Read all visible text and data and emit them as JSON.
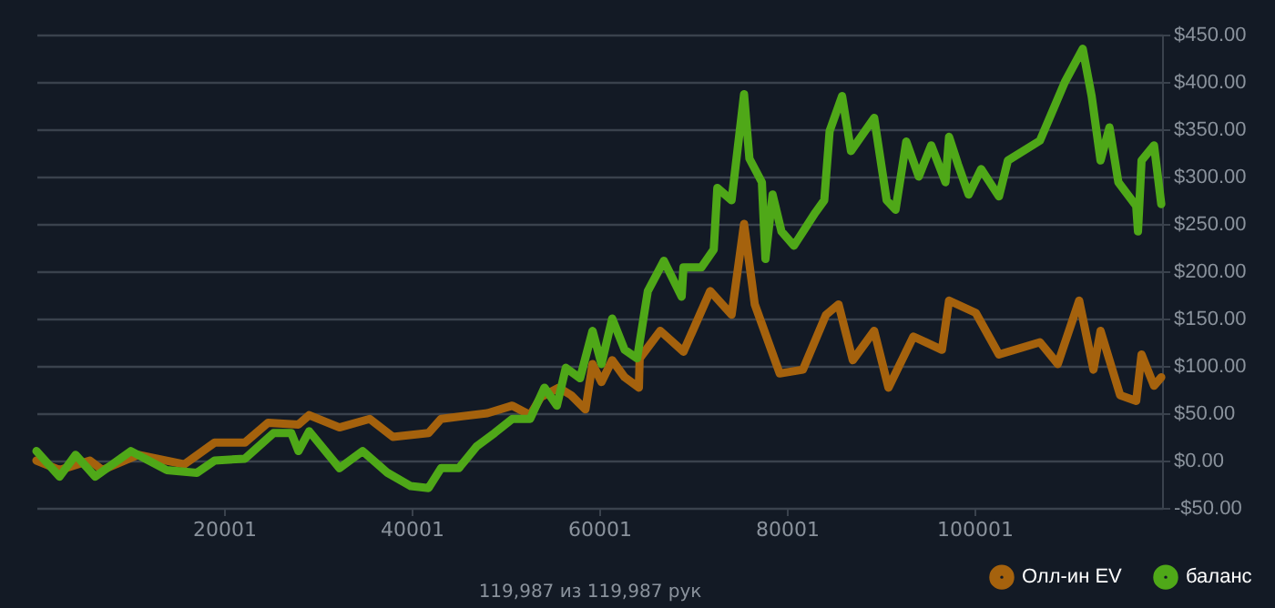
{
  "chart_data": {
    "type": "line",
    "xlim": [
      1,
      119987
    ],
    "xticks": [
      20001,
      40001,
      60001,
      80001,
      100001
    ],
    "ylim": [
      -50,
      450
    ],
    "yticks": [
      {
        "value": -50,
        "label": "-$50.00"
      },
      {
        "value": 0,
        "label": "$0.00"
      },
      {
        "value": 50,
        "label": "$50.00"
      },
      {
        "value": 100,
        "label": "$100.00"
      },
      {
        "value": 150,
        "label": "$150.00"
      },
      {
        "value": 200,
        "label": "$200.00"
      },
      {
        "value": 250,
        "label": "$250.00"
      },
      {
        "value": 300,
        "label": "$300.00"
      },
      {
        "value": 350,
        "label": "$350.00"
      },
      {
        "value": 400,
        "label": "$400.00"
      },
      {
        "value": 450,
        "label": "$450.00"
      }
    ],
    "grid": "y",
    "legend": "bottom right",
    "marker": "none",
    "line_style": "solid",
    "annotations": [
      "119,987 из 119,987 рук"
    ],
    "series": [
      {
        "name": "Олл-ин EV",
        "color": "#a5620d",
        "x": [
          1,
          2470,
          5700,
          7030,
          10830,
          15770,
          19000,
          22230,
          24700,
          27930,
          29070,
          32300,
          35530,
          38000,
          41800,
          43130,
          48070,
          50730,
          52630,
          53770,
          55670,
          57000,
          58520,
          59280,
          60230,
          61370,
          62700,
          64220,
          64300,
          66500,
          68970,
          71820,
          74100,
          75430,
          76570,
          79230,
          81700,
          84170,
          85500,
          87020,
          89300,
          90820,
          93480,
          96520,
          97280,
          100130,
          102600,
          106970,
          108870,
          111150,
          112670,
          113430,
          115520,
          117230,
          117800,
          119130,
          119900
        ],
        "values": [
          0,
          -10,
          0,
          -10,
          6,
          -4,
          19,
          19,
          40,
          38,
          48,
          35,
          44,
          25,
          29,
          44,
          50,
          58,
          48,
          67,
          77,
          69,
          54,
          102,
          83,
          106,
          88,
          77,
          108,
          137,
          115,
          179,
          154,
          250,
          165,
          92,
          96,
          154,
          165,
          106,
          137,
          77,
          131,
          117,
          169,
          156,
          112,
          125,
          102,
          169,
          96,
          137,
          69,
          63,
          112,
          79,
          88
        ]
      },
      {
        "name": "баланс",
        "color": "#4fa818",
        "x": [
          1,
          2470,
          4180,
          6270,
          10070,
          13870,
          17100,
          19000,
          22230,
          25270,
          27170,
          27930,
          29070,
          32300,
          34770,
          37430,
          39900,
          41800,
          43130,
          45030,
          46930,
          48830,
          50730,
          52630,
          54150,
          55480,
          56430,
          57950,
          59280,
          60230,
          61370,
          62700,
          64030,
          65170,
          66880,
          68780,
          68970,
          70870,
          72200,
          72580,
          74100,
          75430,
          76000,
          77330,
          77710,
          78470,
          79420,
          80750,
          83030,
          83980,
          84550,
          85880,
          86830,
          89300,
          90630,
          91580,
          92720,
          94050,
          95380,
          96900,
          97280,
          98230,
          99370,
          100700,
          102600,
          103550,
          106970,
          109630,
          111530,
          112480,
          113430,
          114380,
          115330,
          117230,
          117420,
          117800,
          119130,
          119900
        ],
        "values": [
          10,
          -17,
          6,
          -17,
          10,
          -10,
          -13,
          0,
          2,
          29,
          29,
          10,
          31,
          -8,
          10,
          -13,
          -27,
          -29,
          -8,
          -8,
          15,
          29,
          44,
          44,
          77,
          58,
          98,
          87,
          137,
          102,
          150,
          117,
          108,
          179,
          211,
          173,
          204,
          204,
          223,
          288,
          275,
          387,
          319,
          294,
          213,
          281,
          242,
          227,
          262,
          275,
          348,
          385,
          327,
          362,
          275,
          265,
          337,
          300,
          333,
          294,
          342,
          313,
          281,
          308,
          279,
          317,
          338,
          400,
          435,
          385,
          317,
          352,
          294,
          269,
          242,
          317,
          333,
          271
        ]
      }
    ]
  }
}
